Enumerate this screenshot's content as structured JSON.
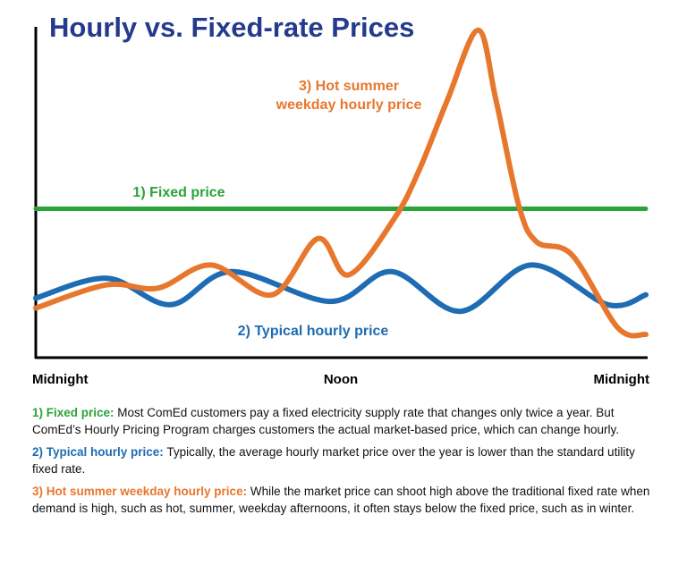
{
  "chart_data": {
    "type": "line",
    "title": "Hourly vs. Fixed-rate Prices",
    "xlim": [
      0,
      24
    ],
    "xticks": [
      {
        "value": 0,
        "label": "Midnight"
      },
      {
        "value": 12,
        "label": "Noon"
      },
      {
        "value": 24,
        "label": "Midnight"
      }
    ],
    "ylim": [
      0,
      100
    ],
    "series": [
      {
        "name": "1) Fixed price",
        "color": "#2aa339",
        "x": [
          0,
          24
        ],
        "values": [
          45,
          45
        ]
      },
      {
        "name": "2) Typical hourly price",
        "color": "#1e6cb3",
        "x": [
          0,
          2.8,
          5.3,
          7.7,
          11.6,
          14,
          16.7,
          19.5,
          22.5,
          24
        ],
        "values": [
          18,
          24,
          16,
          26,
          17,
          26,
          14,
          28,
          16,
          19
        ]
      },
      {
        "name": "3) Hot summer weekday hourly price",
        "color": "#e8772e",
        "x": [
          0,
          2.8,
          4.8,
          6.9,
          9.3,
          11.1,
          12.3,
          14.1,
          15.1,
          16.2,
          17.4,
          18.1,
          19,
          19.7,
          21.1,
          22.9,
          24
        ],
        "values": [
          15,
          22,
          21,
          28,
          19,
          36,
          25,
          42,
          57,
          78,
          99,
          78,
          46,
          35,
          31,
          9,
          7
        ]
      }
    ],
    "notes": [
      {
        "label": "1) Fixed price:",
        "text": "Most ComEd customers pay a fixed electricity supply rate that changes only twice a year.  But ComEd’s Hourly Pricing Program charges customers the actual market-based price, which can change hourly."
      },
      {
        "label": "2) Typical hourly price:",
        "text": "Typically, the average hourly market price over the year is lower than the standard utility fixed rate."
      },
      {
        "label": "3) Hot summer weekday hourly price:",
        "text": "While the market price can shoot high above the traditional fixed rate when demand is high, such as hot, summer, weekday afternoons, it often stays below the fixed price, such as in winter."
      }
    ]
  }
}
